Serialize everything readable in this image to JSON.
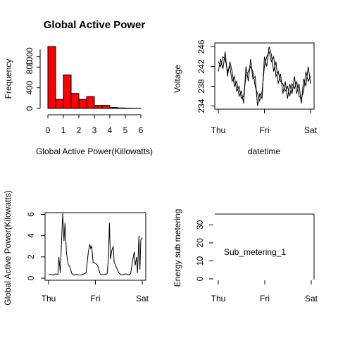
{
  "chart_data": [
    {
      "type": "bar",
      "title": "Global Active Power",
      "xlabel": "Global Active Power(Killowatts)",
      "ylabel": "Frequency",
      "bar_color": "#ff0000",
      "bin_edges": [
        0,
        0.5,
        1,
        1.5,
        2,
        2.5,
        3,
        3.5,
        4,
        4.5,
        5,
        5.5,
        6
      ],
      "values": [
        1200,
        175,
        650,
        290,
        175,
        230,
        60,
        60,
        20,
        10,
        5,
        3
      ],
      "xlim": [
        0,
        6
      ],
      "ylim": [
        0,
        1200
      ],
      "xticks": [
        0,
        1,
        2,
        3,
        4,
        5,
        6
      ],
      "xtick_labels": [
        "0",
        "1",
        "2",
        "3",
        "4",
        "5",
        "6"
      ],
      "yticks": [
        0,
        400,
        800,
        1000
      ],
      "ytick_labels": [
        "0",
        "400",
        "800",
        "1000"
      ]
    },
    {
      "type": "line",
      "xlabel": "datetime",
      "ylabel": "Voltage",
      "xlim": [
        0,
        2
      ],
      "ylim": [
        233.5,
        246.5
      ],
      "xticks": [
        0,
        1,
        2
      ],
      "xtick_labels": [
        "Thu",
        "Fri",
        "Sat"
      ],
      "yticks": [
        234,
        238,
        242,
        246
      ],
      "ytick_labels": [
        "234",
        "238",
        "242",
        "246"
      ],
      "series": [
        {
          "x": [
            0,
            0.05,
            0.1,
            0.15,
            0.2,
            0.25,
            0.3,
            0.35,
            0.4,
            0.45,
            0.5,
            0.55,
            0.6,
            0.65,
            0.7,
            0.75,
            0.8,
            0.85,
            0.9,
            0.95,
            1.0,
            1.05,
            1.1,
            1.15,
            1.2,
            1.25,
            1.3,
            1.35,
            1.4,
            1.45,
            1.5,
            1.55,
            1.6,
            1.65,
            1.7,
            1.75,
            1.8,
            1.85,
            1.9,
            1.95,
            2.0
          ],
          "values": [
            243,
            242,
            244,
            243.5,
            241,
            242,
            239,
            240,
            237,
            238,
            235.5,
            236,
            240,
            241,
            242,
            241,
            238,
            236.5,
            235,
            237,
            242,
            244,
            245,
            243,
            244,
            240,
            241,
            239,
            238.5,
            237,
            238,
            236,
            238.5,
            237.5,
            239,
            236,
            235.5,
            237,
            241,
            239,
            240
          ]
        },
        {
          "x": [
            0,
            0.05,
            0.1,
            0.15,
            0.2,
            0.25,
            0.3,
            0.35,
            0.4,
            0.45,
            0.5,
            0.55,
            0.6,
            0.65,
            0.7,
            0.75,
            0.8,
            0.85,
            0.9,
            0.95,
            1.0,
            1.05,
            1.1,
            1.15,
            1.2,
            1.25,
            1.3,
            1.35,
            1.4,
            1.45,
            1.5,
            1.55,
            1.6,
            1.65,
            1.7,
            1.75,
            1.8,
            1.85,
            1.9,
            1.95,
            2.0
          ],
          "values": [
            241,
            243.5,
            241.5,
            245,
            240,
            243,
            241,
            238,
            239,
            236,
            237,
            234.5,
            242,
            239,
            243.5,
            239.5,
            240,
            234,
            236.5,
            235.5,
            244,
            242,
            246,
            244.5,
            241,
            243,
            238.5,
            240.5,
            236.5,
            239,
            235.5,
            238.5,
            236.5,
            240,
            236.5,
            238.5,
            234.5,
            239.5,
            238,
            242,
            238.5
          ]
        }
      ]
    },
    {
      "type": "line",
      "ylabel": "Global Active Power(Kilowatts)",
      "xlim": [
        0,
        2
      ],
      "ylim": [
        0,
        6.1
      ],
      "xticks": [
        0,
        1,
        2
      ],
      "xtick_labels": [
        "Thu",
        "Fri",
        "Sat"
      ],
      "yticks": [
        0,
        2,
        4,
        6
      ],
      "ytick_labels": [
        "0",
        "2",
        "4",
        "6"
      ],
      "series": [
        {
          "x": [
            0,
            0.05,
            0.1,
            0.15,
            0.2,
            0.22,
            0.25,
            0.3,
            0.33,
            0.35,
            0.38,
            0.4,
            0.42,
            0.45,
            0.5,
            0.55,
            0.6,
            0.65,
            0.7,
            0.75,
            0.8,
            0.85,
            0.88,
            0.9,
            0.92,
            0.95,
            1.0,
            1.05,
            1.1,
            1.15,
            1.2,
            1.25,
            1.28,
            1.3,
            1.32,
            1.35,
            1.38,
            1.4,
            1.45,
            1.5,
            1.55,
            1.6,
            1.65,
            1.7,
            1.75,
            1.8,
            1.83,
            1.85,
            1.88,
            1.9,
            1.93,
            1.95,
            1.97,
            2.0
          ],
          "values": [
            0.3,
            0.35,
            0.3,
            0.4,
            0.35,
            2.0,
            0.5,
            6.1,
            3.5,
            5.2,
            2.5,
            1.8,
            1.3,
            1.1,
            0.4,
            0.3,
            0.35,
            0.3,
            0.3,
            0.4,
            0.5,
            2.5,
            3.2,
            2.8,
            3.0,
            1.5,
            1.4,
            1.2,
            0.4,
            0.3,
            0.35,
            0.4,
            2.0,
            5.2,
            1.8,
            2.6,
            3.0,
            1.5,
            1.0,
            0.5,
            0.3,
            0.35,
            0.4,
            0.3,
            0.4,
            1.8,
            2.5,
            1.2,
            2.0,
            0.5,
            4.0,
            0.8,
            3.6,
            3.8
          ]
        }
      ]
    },
    {
      "type": "line",
      "ylabel": "Energy sub metering",
      "xlim": [
        0,
        2
      ],
      "ylim": [
        0,
        36
      ],
      "xticks": [
        0,
        1,
        2
      ],
      "xtick_labels": [
        "Thu",
        "Fri",
        "Sat"
      ],
      "yticks": [
        0,
        10,
        20,
        30
      ],
      "ytick_labels": [
        "0",
        "10",
        "20",
        "30"
      ],
      "legend_text": "Sub_metering_1",
      "series": []
    }
  ]
}
